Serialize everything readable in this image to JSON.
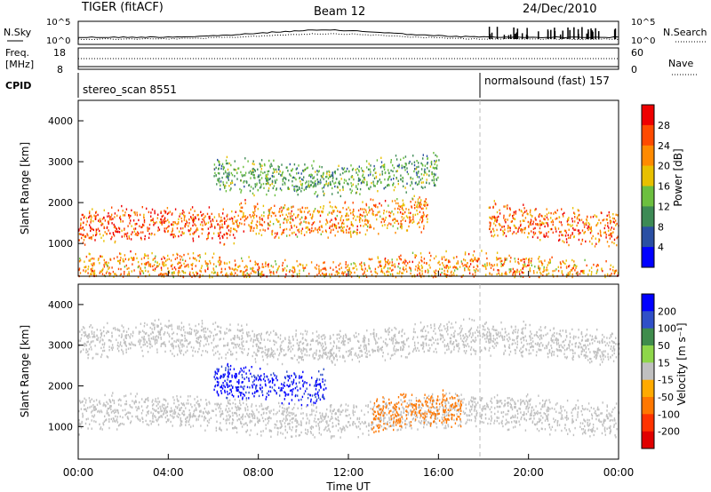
{
  "header": {
    "title": "TIGER (fitACF)",
    "beam": "Beam 12",
    "date": "24/Dec/2010"
  },
  "noise_panel": {
    "left_label": "N.Sky",
    "right_label": "N.Search",
    "left_ticks": [
      "10^5",
      "10^0"
    ],
    "right_ticks": [
      "10^5",
      "10^0"
    ]
  },
  "freq_panel": {
    "left_label_1": "Freq.",
    "left_label_2": "[MHz]",
    "right_label": "Nave",
    "left_ticks": [
      "18",
      "8"
    ],
    "right_ticks": [
      "60",
      "0"
    ]
  },
  "cpid_panel": {
    "label": "CPID",
    "modes": [
      {
        "name": "stereo_scan 8551",
        "start_hour": 0
      },
      {
        "name": "normalsound (fast) 157",
        "start_hour": 18
      }
    ]
  },
  "chart_data": [
    {
      "type": "heatmap",
      "title": "Power [dB]",
      "xlabel": "",
      "ylabel": "Slant Range [km]",
      "xlim": [
        0,
        24
      ],
      "ylim": [
        200,
        4500
      ],
      "y_ticks": [
        "1000",
        "2000",
        "3000",
        "4000"
      ],
      "colorbar": {
        "label": "Power [dB]",
        "ticks": [
          "4",
          "8",
          "12",
          "16",
          "20",
          "24",
          "28"
        ],
        "colors": [
          "#0000ff",
          "#2a4fa3",
          "#3d8a55",
          "#6cbf3f",
          "#e8c000",
          "#ff8a00",
          "#ff4a00",
          "#ee0000"
        ]
      },
      "bands": [
        {
          "start": 0,
          "end": 7,
          "center_km": 1400,
          "value": 26
        },
        {
          "start": 7,
          "end": 15.5,
          "center_km": 1700,
          "value": 22
        },
        {
          "start": 18.2,
          "end": 24,
          "center_km": 1500,
          "value": 24
        },
        {
          "start": 6,
          "end": 16,
          "center_km": 2700,
          "value": 12
        },
        {
          "start": 0,
          "end": 24,
          "center_km": 300,
          "value": 22
        }
      ]
    },
    {
      "type": "heatmap",
      "title": "Velocity [m s^-1]",
      "xlabel": "Time UT",
      "ylabel": "Slant Range [km]",
      "xlim": [
        0,
        24
      ],
      "ylim": [
        200,
        4500
      ],
      "y_ticks": [
        "1000",
        "2000",
        "3000",
        "4000"
      ],
      "x_ticks": [
        "00:00",
        "04:00",
        "08:00",
        "12:00",
        "16:00",
        "20:00",
        "00:00"
      ],
      "colorbar": {
        "label": "Velocity [m s⁻¹]",
        "ticks": [
          "200",
          "100",
          "50",
          "15",
          "-15",
          "-50",
          "-100",
          "-200"
        ],
        "colors": [
          "#0000ff",
          "#3050c8",
          "#3f8c4c",
          "#8ed64a",
          "#c0c0c0",
          "#ffaa00",
          "#ff7700",
          "#ff3300",
          "#e00000"
        ]
      },
      "bands": [
        {
          "start": 6,
          "end": 11,
          "center_km": 2100,
          "value": 220
        },
        {
          "start": 0,
          "end": 24,
          "center_km": 1300,
          "value": 0
        },
        {
          "start": 13,
          "end": 17,
          "center_km": 1350,
          "value": -70
        },
        {
          "start": 0,
          "end": 24,
          "center_km": 3100,
          "value": 0
        }
      ]
    }
  ]
}
